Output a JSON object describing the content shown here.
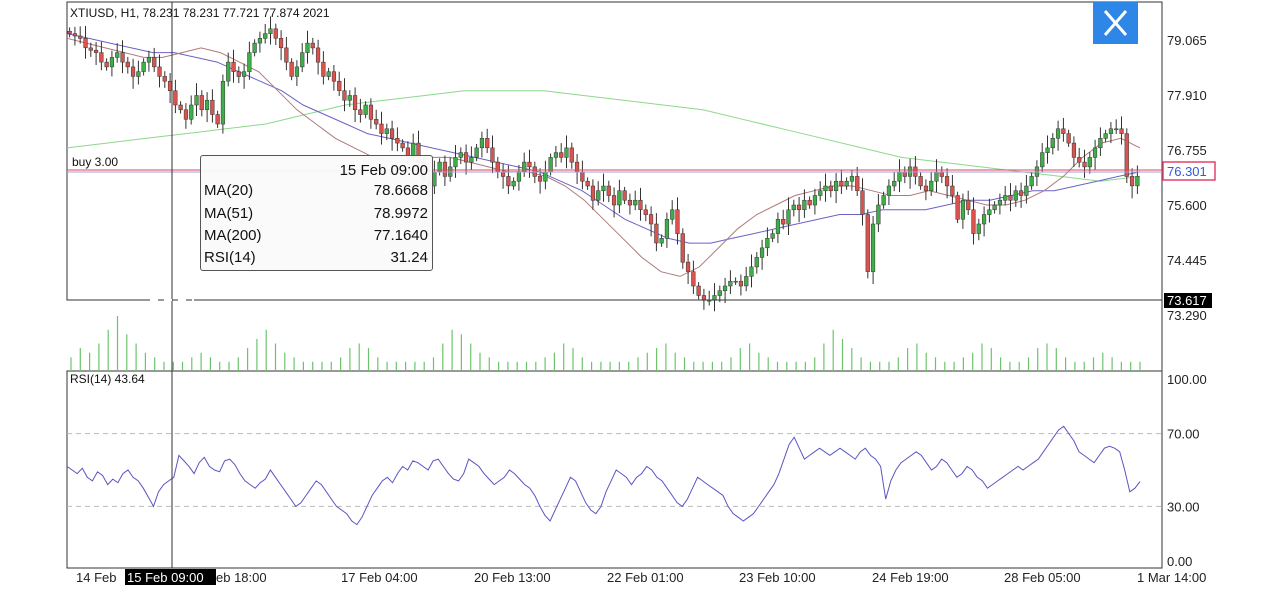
{
  "header": {
    "symbol_line": "XTIUSD, H1, 78.231 78.231 77.721 77.874 2021"
  },
  "close_button": {
    "icon": "close-icon",
    "color": "#2e86e6"
  },
  "order_line": {
    "label": "buy 3.00",
    "price": 76.301,
    "color": "#e0436b"
  },
  "tooltip": {
    "date": "15 Feb 09:00",
    "rows": [
      {
        "key": "MA(20)",
        "value": "78.6668"
      },
      {
        "key": "MA(51)",
        "value": "78.9972"
      },
      {
        "key": "MA(200)",
        "value": "77.1640"
      },
      {
        "key": "RSI(14)",
        "value": "31.24"
      }
    ]
  },
  "crosshair": {
    "date_label": "15 Feb 09:00",
    "price_label": "73.617",
    "price": 73.617
  },
  "chart_data": [
    {
      "type": "candlestick",
      "title": "XTIUSD, H1",
      "price_ticks": [
        "79.065",
        "77.910",
        "76.755",
        "75.600",
        "74.445",
        "73.290"
      ],
      "ylim": [
        73.29,
        79.62
      ],
      "current_price": {
        "label": "76.301",
        "value": 76.301
      },
      "x_ticks": [
        "14 Feb",
        "15 Feb 18:00",
        "17 Feb 04:00",
        "20 Feb 13:00",
        "22 Feb 01:00",
        "23 Feb 10:00",
        "24 Feb 19:00",
        "28 Feb 05:00",
        "1 Mar 14:00"
      ],
      "close_series": [
        79.2,
        79.15,
        79.1,
        78.9,
        78.85,
        78.8,
        78.6,
        78.5,
        78.7,
        78.8,
        78.6,
        78.5,
        78.3,
        78.4,
        78.6,
        78.7,
        78.5,
        78.3,
        78.2,
        78.0,
        77.7,
        77.6,
        77.4,
        77.7,
        77.9,
        77.6,
        77.8,
        77.5,
        77.3,
        78.2,
        78.6,
        78.4,
        78.3,
        78.4,
        78.8,
        79.0,
        79.1,
        79.2,
        79.3,
        79.1,
        78.9,
        78.6,
        78.3,
        78.5,
        78.8,
        79.0,
        78.9,
        78.6,
        78.3,
        78.4,
        78.2,
        78.0,
        77.8,
        77.9,
        77.6,
        77.5,
        77.7,
        77.4,
        77.3,
        77.1,
        77.2,
        77.0,
        76.9,
        76.8,
        76.6,
        76.9,
        76.5,
        76.1,
        76.0,
        76.3,
        76.5,
        76.2,
        76.4,
        76.6,
        76.7,
        76.5,
        76.6,
        76.8,
        77.0,
        76.8,
        76.5,
        76.3,
        76.2,
        76.0,
        76.1,
        76.3,
        76.5,
        76.4,
        76.2,
        76.1,
        76.3,
        76.6,
        76.7,
        76.6,
        76.8,
        76.5,
        76.3,
        76.1,
        76.0,
        75.7,
        75.9,
        76.0,
        75.8,
        75.6,
        75.9,
        75.7,
        75.6,
        75.7,
        75.5,
        75.4,
        75.2,
        74.8,
        74.9,
        75.3,
        75.5,
        75.0,
        74.4,
        74.2,
        73.9,
        73.7,
        73.6,
        73.6,
        73.7,
        73.8,
        73.9,
        74.0,
        74.0,
        73.9,
        74.1,
        74.3,
        74.5,
        74.7,
        74.9,
        75.0,
        75.3,
        75.2,
        75.5,
        75.6,
        75.5,
        75.7,
        75.6,
        75.8,
        75.9,
        76.0,
        75.9,
        76.1,
        76.0,
        76.1,
        76.2,
        75.9,
        75.4,
        74.2,
        75.2,
        75.6,
        75.8,
        76.0,
        76.1,
        76.3,
        76.2,
        76.4,
        76.2,
        76.0,
        75.9,
        76.1,
        76.3,
        76.2,
        76.0,
        75.8,
        75.3,
        75.7,
        75.5,
        75.0,
        75.2,
        75.4,
        75.5,
        75.6,
        75.7,
        75.8,
        75.7,
        75.9,
        75.8,
        76.0,
        76.2,
        76.4,
        76.7,
        76.8,
        77.0,
        77.2,
        77.1,
        76.9,
        76.6,
        76.5,
        76.4,
        76.6,
        76.8,
        77.0,
        77.1,
        77.2,
        77.2,
        77.1,
        76.2,
        76.0,
        76.2
      ],
      "ma_series": [
        {
          "name": "MA(20)",
          "color": "#b07a7a",
          "values": [
            79.1,
            79.0,
            78.9,
            78.8,
            78.7,
            78.7,
            78.8,
            78.9,
            78.8,
            78.6,
            78.4,
            78.0,
            77.6,
            77.3,
            77.0,
            76.8,
            76.6,
            76.5,
            76.5,
            76.6,
            76.6,
            76.5,
            76.4,
            76.3,
            76.3,
            76.2,
            76.0,
            75.7,
            75.3,
            74.9,
            74.5,
            74.2,
            74.1,
            74.3,
            74.7,
            75.1,
            75.4,
            75.6,
            75.8,
            75.9,
            76.0,
            76.0,
            75.9,
            75.8,
            75.8,
            75.9,
            75.8,
            75.7,
            75.6,
            75.6,
            75.7,
            75.9,
            76.2,
            76.6,
            76.9,
            77.0,
            76.8
          ]
        },
        {
          "name": "MA(51)",
          "color": "#6b62c7",
          "values": [
            79.2,
            79.1,
            79.0,
            78.9,
            78.8,
            78.8,
            78.7,
            78.6,
            78.4,
            78.2,
            78.0,
            77.7,
            77.5,
            77.3,
            77.1,
            77.0,
            76.9,
            76.8,
            76.7,
            76.6,
            76.5,
            76.4,
            76.3,
            76.1,
            75.9,
            75.6,
            75.3,
            75.1,
            74.9,
            74.8,
            74.8,
            74.9,
            75.0,
            75.1,
            75.2,
            75.3,
            75.4,
            75.4,
            75.5,
            75.5,
            75.5,
            75.6,
            75.7,
            75.7,
            75.8,
            75.9,
            75.9,
            76.0,
            76.1,
            76.2,
            76.3
          ]
        },
        {
          "name": "MA(200)",
          "color": "#8bd88b",
          "values": [
            76.8,
            76.9,
            77.0,
            77.1,
            77.2,
            77.3,
            77.5,
            77.7,
            77.8,
            77.9,
            78.0,
            78.0,
            78.0,
            77.9,
            77.8,
            77.7,
            77.6,
            77.4,
            77.2,
            77.0,
            76.8,
            76.6,
            76.5,
            76.4,
            76.3,
            76.2,
            76.1,
            76.2
          ]
        }
      ]
    },
    {
      "type": "bar",
      "title": "Volume",
      "values": [
        3,
        5,
        4,
        6,
        9,
        12,
        8,
        6,
        4,
        3,
        2,
        2,
        2,
        3,
        4,
        3,
        2,
        2,
        3,
        5,
        7,
        9,
        6,
        4,
        3,
        2,
        2,
        2,
        2,
        3,
        5,
        6,
        5,
        3,
        2,
        2,
        2,
        2,
        2,
        3,
        6,
        9,
        8,
        6,
        4,
        3,
        2,
        2,
        2,
        2,
        2,
        3,
        4,
        6,
        5,
        3,
        2,
        2,
        2,
        2,
        2,
        3,
        4,
        5,
        6,
        4,
        3,
        2,
        2,
        2,
        2,
        3,
        5,
        6,
        4,
        3,
        2,
        2,
        2,
        2,
        3,
        6,
        9,
        7,
        5,
        3,
        2,
        2,
        2,
        3,
        5,
        6,
        4,
        3,
        2,
        2,
        3,
        4,
        6,
        5,
        3,
        2,
        2,
        3,
        5,
        6,
        5,
        3,
        2,
        2,
        3,
        4,
        3,
        2,
        2,
        2
      ]
    },
    {
      "type": "line",
      "title": "RSI(14) 43.64",
      "y_ticks": [
        "100.00",
        "70.00",
        "30.00",
        "0.00"
      ],
      "ylim": [
        0,
        100
      ],
      "levels": [
        70,
        30
      ],
      "values": [
        52,
        50,
        48,
        51,
        46,
        44,
        49,
        47,
        42,
        45,
        43,
        48,
        50,
        46,
        44,
        40,
        35,
        30,
        38,
        42,
        44,
        46,
        58,
        55,
        52,
        48,
        54,
        57,
        52,
        50,
        49,
        55,
        56,
        53,
        48,
        44,
        42,
        40,
        43,
        45,
        50,
        46,
        42,
        38,
        34,
        30,
        32,
        36,
        40,
        44,
        42,
        38,
        34,
        30,
        28,
        26,
        22,
        20,
        24,
        30,
        36,
        40,
        44,
        46,
        43,
        48,
        52,
        50,
        55,
        54,
        52,
        50,
        55,
        56,
        52,
        48,
        45,
        44,
        48,
        56,
        54,
        52,
        48,
        45,
        42,
        44,
        46,
        50,
        48,
        45,
        42,
        40,
        36,
        30,
        25,
        22,
        28,
        34,
        40,
        46,
        44,
        38,
        32,
        28,
        26,
        30,
        38,
        44,
        50,
        48,
        46,
        42,
        46,
        48,
        52,
        50,
        46,
        44,
        40,
        36,
        32,
        30,
        34,
        40,
        46,
        44,
        42,
        40,
        38,
        36,
        30,
        26,
        24,
        22,
        24,
        26,
        30,
        34,
        38,
        42,
        48,
        56,
        64,
        68,
        62,
        56,
        58,
        60,
        62,
        60,
        58,
        60,
        62,
        60,
        58,
        56,
        60,
        62,
        58,
        56,
        52,
        34,
        44,
        50,
        54,
        56,
        58,
        60,
        58,
        54,
        50,
        52,
        56,
        54,
        50,
        46,
        48,
        52,
        50,
        46,
        44,
        40,
        42,
        44,
        46,
        48,
        50,
        52,
        50,
        52,
        54,
        56,
        60,
        64,
        68,
        72,
        74,
        70,
        66,
        60,
        58,
        56,
        54,
        58,
        62,
        63,
        62,
        60,
        50,
        38,
        40,
        43.64
      ]
    }
  ]
}
